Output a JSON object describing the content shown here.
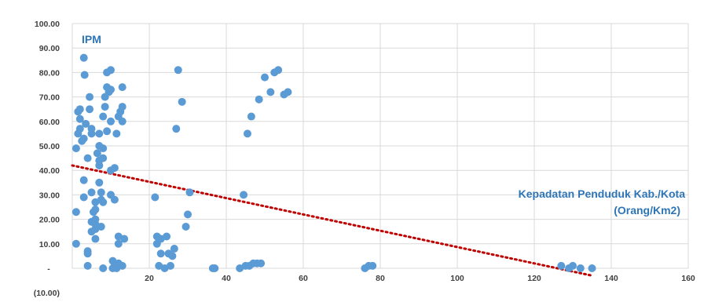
{
  "chart_data": {
    "type": "scatter",
    "title": "",
    "xlabel": "",
    "ylabel": "",
    "xlim": [
      0,
      160
    ],
    "ylim": [
      -10,
      100
    ],
    "x_ticks": [
      20,
      40,
      60,
      80,
      100,
      120,
      140,
      160
    ],
    "x_tick_labels": [
      "20",
      "40",
      "60",
      "80",
      "100",
      "120",
      "140",
      "160"
    ],
    "y_ticks": [
      -10,
      0,
      10,
      20,
      30,
      40,
      50,
      60,
      70,
      80,
      90,
      100
    ],
    "y_tick_labels": [
      "(10.00)",
      "-",
      "10.00",
      "20.00",
      "30.00",
      "40.00",
      "50.00",
      "60.00",
      "70.00",
      "80.00",
      "90.00",
      "100.00"
    ],
    "grid": true,
    "annotations": {
      "y_var": "IPM",
      "x_var_line1": "Kepadatan Penduduk Kab./Kota",
      "x_var_line2": "(Orang/Km2)"
    },
    "colors": {
      "points": "#5b9bd5",
      "trendline": "#c00000",
      "grid": "#d9d9d9",
      "annotation": "#2e75b6"
    },
    "trendline": {
      "style": "dotted",
      "x": [
        0,
        135
      ],
      "y": [
        42,
        -3
      ]
    },
    "series": [
      {
        "points": [
          [
            1,
            23
          ],
          [
            1,
            10
          ],
          [
            1,
            49
          ],
          [
            1.5,
            55
          ],
          [
            1.5,
            64
          ],
          [
            2,
            57
          ],
          [
            2,
            61
          ],
          [
            2,
            65
          ],
          [
            2.5,
            52
          ],
          [
            3,
            53
          ],
          [
            3,
            29
          ],
          [
            3,
            36
          ],
          [
            3,
            86
          ],
          [
            3.2,
            79
          ],
          [
            3.5,
            59
          ],
          [
            4,
            7
          ],
          [
            4,
            6
          ],
          [
            4,
            1
          ],
          [
            4,
            45
          ],
          [
            4.5,
            70
          ],
          [
            4.5,
            65
          ],
          [
            5,
            55
          ],
          [
            5,
            57
          ],
          [
            5,
            15
          ],
          [
            5,
            19
          ],
          [
            5,
            31
          ],
          [
            5.5,
            23
          ],
          [
            6,
            27
          ],
          [
            6,
            24
          ],
          [
            6,
            20
          ],
          [
            6,
            18
          ],
          [
            6,
            12
          ],
          [
            6,
            16
          ],
          [
            6.5,
            47
          ],
          [
            7,
            50
          ],
          [
            7,
            44
          ],
          [
            7,
            42
          ],
          [
            7,
            35
          ],
          [
            7,
            55
          ],
          [
            7.5,
            31
          ],
          [
            7.5,
            28
          ],
          [
            7.5,
            17
          ],
          [
            8,
            49
          ],
          [
            8,
            45
          ],
          [
            8,
            62
          ],
          [
            8,
            27
          ],
          [
            8,
            0
          ],
          [
            8.5,
            70
          ],
          [
            8.5,
            66
          ],
          [
            9,
            80
          ],
          [
            9,
            74
          ],
          [
            9,
            56
          ],
          [
            9.5,
            72
          ],
          [
            10,
            81
          ],
          [
            10,
            73
          ],
          [
            10,
            60
          ],
          [
            10,
            40
          ],
          [
            10,
            30
          ],
          [
            10.5,
            3
          ],
          [
            10.5,
            0
          ],
          [
            11,
            41
          ],
          [
            11,
            28
          ],
          [
            11,
            2
          ],
          [
            11.5,
            55
          ],
          [
            11.5,
            0
          ],
          [
            12,
            2
          ],
          [
            12,
            13
          ],
          [
            12,
            10
          ],
          [
            12,
            62
          ],
          [
            12.5,
            64
          ],
          [
            13,
            66
          ],
          [
            13,
            74
          ],
          [
            13,
            60
          ],
          [
            13,
            1
          ],
          [
            13.5,
            12
          ],
          [
            21.5,
            29
          ],
          [
            22,
            13
          ],
          [
            22,
            10
          ],
          [
            22.5,
            1
          ],
          [
            23,
            6
          ],
          [
            23,
            12
          ],
          [
            24,
            0
          ],
          [
            24.5,
            13
          ],
          [
            25,
            6
          ],
          [
            25.5,
            1
          ],
          [
            26,
            5
          ],
          [
            26.5,
            8
          ],
          [
            27,
            57
          ],
          [
            27.5,
            81
          ],
          [
            28.5,
            68
          ],
          [
            29.5,
            17
          ],
          [
            30,
            22
          ],
          [
            30.5,
            31
          ],
          [
            36.5,
            0
          ],
          [
            37,
            0
          ],
          [
            43.5,
            0
          ],
          [
            44.5,
            30
          ],
          [
            45,
            1
          ],
          [
            45.5,
            55
          ],
          [
            46,
            1
          ],
          [
            46.5,
            62
          ],
          [
            47,
            2
          ],
          [
            48,
            2
          ],
          [
            48.5,
            69
          ],
          [
            49,
            2
          ],
          [
            50,
            78
          ],
          [
            51.5,
            72
          ],
          [
            52.5,
            80
          ],
          [
            53.5,
            81
          ],
          [
            55,
            71
          ],
          [
            56,
            72
          ],
          [
            76,
            0
          ],
          [
            77,
            1
          ],
          [
            78,
            1
          ],
          [
            127,
            1
          ],
          [
            129,
            0
          ],
          [
            130,
            1
          ],
          [
            132,
            0
          ],
          [
            135,
            0
          ]
        ]
      }
    ]
  }
}
